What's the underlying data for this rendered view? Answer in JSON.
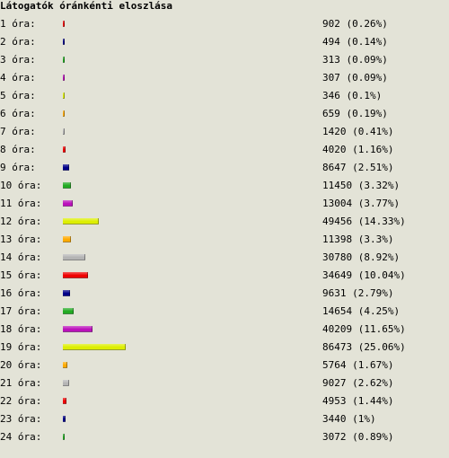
{
  "chart_data": {
    "type": "bar",
    "title": "Látogatók óránkénti eloszlása",
    "orientation": "horizontal",
    "categories": [
      "1 óra:",
      "2 óra:",
      "3 óra:",
      "4 óra:",
      "5 óra:",
      "6 óra:",
      "7 óra:",
      "8 óra:",
      "9 óra:",
      "10 óra:",
      "11 óra:",
      "12 óra:",
      "13 óra:",
      "14 óra:",
      "15 óra:",
      "16 óra:",
      "17 óra:",
      "18 óra:",
      "19 óra:",
      "20 óra:",
      "21 óra:",
      "22 óra:",
      "23 óra:",
      "24 óra:"
    ],
    "values": [
      902,
      494,
      313,
      307,
      346,
      659,
      1420,
      4020,
      8647,
      11450,
      13004,
      49456,
      11398,
      30780,
      34649,
      9631,
      14654,
      40209,
      86473,
      5764,
      9027,
      4953,
      3440,
      3072
    ],
    "value_labels": [
      "902 (0.26%)",
      "494 (0.14%)",
      "313 (0.09%)",
      "307 (0.09%)",
      "346 (0.1%)",
      "659 (0.19%)",
      "1420 (0.41%)",
      "4020 (1.16%)",
      "8647 (2.51%)",
      "11450 (3.32%)",
      "13004 (3.77%)",
      "49456 (14.33%)",
      "11398 (3.3%)",
      "30780 (8.92%)",
      "34649 (10.04%)",
      "9631 (2.79%)",
      "14654 (4.25%)",
      "40209 (11.65%)",
      "86473 (25.06%)",
      "5764 (1.67%)",
      "9027 (2.62%)",
      "4953 (1.44%)",
      "3440 (1%)",
      "3072 (0.89%)"
    ],
    "bar_colors": [
      "#ee0000",
      "#000088",
      "#22aa22",
      "#bb11bb",
      "#ddee00",
      "#ffaa00",
      "#b4b4b4",
      "#ee0000",
      "#000088",
      "#22aa22",
      "#bb11bb",
      "#ddee00",
      "#ffaa00",
      "#b4b4b4",
      "#ee0000",
      "#000088",
      "#22aa22",
      "#bb11bb",
      "#ddee00",
      "#ffaa00",
      "#b4b4b4",
      "#ee0000",
      "#000088",
      "#22aa22"
    ],
    "xlim": [
      0,
      86473
    ],
    "grid": false,
    "legend": "none"
  }
}
